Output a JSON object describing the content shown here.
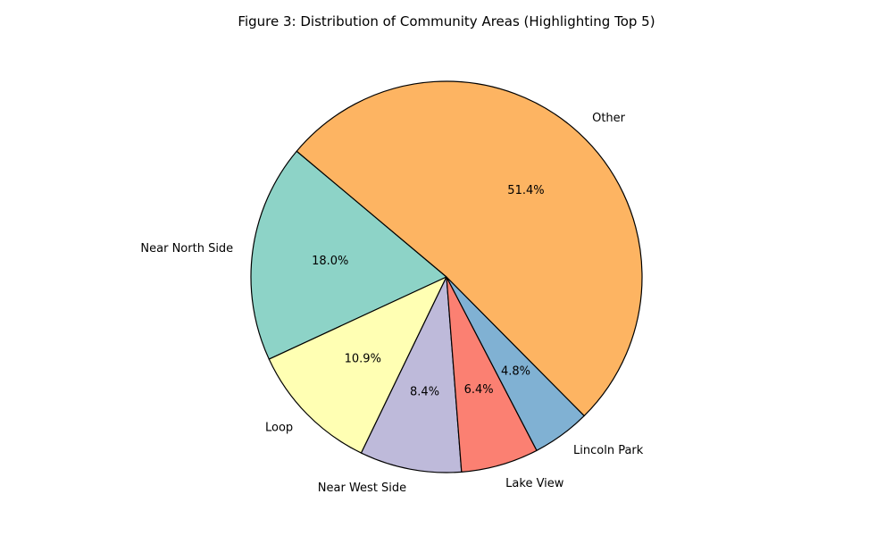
{
  "chart_data": {
    "type": "pie",
    "title": "Figure 3: Distribution of Community Areas (Highlighting Top 5)",
    "slices": [
      {
        "label": "Near North Side",
        "value": 18.0,
        "pct_label": "18.0%",
        "color": "#8dd3c7"
      },
      {
        "label": "Loop",
        "value": 10.9,
        "pct_label": "10.9%",
        "color": "#ffffb3"
      },
      {
        "label": "Near West Side",
        "value": 8.4,
        "pct_label": "8.4%",
        "color": "#bebada"
      },
      {
        "label": "Lake View",
        "value": 6.4,
        "pct_label": "6.4%",
        "color": "#fb8072"
      },
      {
        "label": "Lincoln Park",
        "value": 4.8,
        "pct_label": "4.8%",
        "color": "#80b1d3"
      },
      {
        "label": "Other",
        "value": 51.4,
        "pct_label": "51.4%",
        "color": "#fdb462"
      }
    ],
    "start_angle_deg": 140,
    "direction": "counterclockwise",
    "edge_color": "#000000"
  }
}
